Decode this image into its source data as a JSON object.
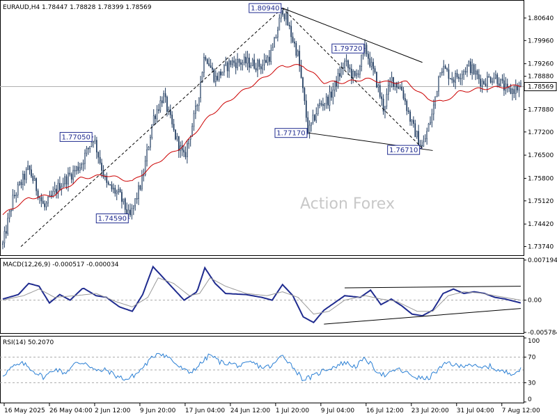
{
  "header": {
    "main": "EURAUD,H4  1.78447 1.78828 1.78399 1.78569",
    "macd": "MACD(12,26,9) -0.000517 -0.000034",
    "rsi": "RSI(14) 50.2070"
  },
  "watermark": "Action Forex",
  "colors": {
    "candle": "#1e3a5f",
    "ma": "#cc0000",
    "macd": "#1f2b8f",
    "signal": "#999999",
    "rsi": "#2a7fd4",
    "box": "#1f2b8f"
  },
  "chart_data": [
    {
      "type": "candlestick",
      "title": "EURAUD,H4",
      "ohlc_last": {
        "open": 1.78447,
        "high": 1.78828,
        "low": 1.78399,
        "close": 1.78569
      },
      "current_price_label": "1.78569",
      "ylim": [
        1.735,
        1.811
      ],
      "yticks": [
        "1.80640",
        "1.79960",
        "1.79260",
        "1.78880",
        "1.77880",
        "1.77200",
        "1.76500",
        "1.75800",
        "1.75120",
        "1.74420",
        "1.73740"
      ],
      "xticks": [
        "16 May 2025",
        "26 May 04:00",
        "2 Jun 12:00",
        "9 Jun 20:00",
        "17 Jun 04:00",
        "24 Jun 12:00",
        "1 Jul 20:00",
        "9 Jul 04:00",
        "16 Jul 12:00",
        "23 Jul 20:00",
        "31 Jul 04:00",
        "7 Aug 12:00"
      ],
      "annotations": [
        {
          "label": "1.80940",
          "x": 0.54,
          "y": 1.8094
        },
        {
          "label": "1.79720",
          "x": 0.7,
          "y": 1.7972
        },
        {
          "label": "1.77050",
          "x": 0.175,
          "y": 1.7705
        },
        {
          "label": "1.77170",
          "x": 0.59,
          "y": 1.7717
        },
        {
          "label": "1.76710",
          "x": 0.81,
          "y": 1.7671
        },
        {
          "label": "1.74590",
          "x": 0.245,
          "y": 1.7459
        }
      ],
      "pivots": [
        {
          "x": 0.0,
          "y": 1.738
        },
        {
          "x": 0.02,
          "y": 1.752
        },
        {
          "x": 0.05,
          "y": 1.761
        },
        {
          "x": 0.08,
          "y": 1.749
        },
        {
          "x": 0.11,
          "y": 1.756
        },
        {
          "x": 0.15,
          "y": 1.762
        },
        {
          "x": 0.175,
          "y": 1.7705
        },
        {
          "x": 0.2,
          "y": 1.756
        },
        {
          "x": 0.225,
          "y": 1.753
        },
        {
          "x": 0.245,
          "y": 1.7459
        },
        {
          "x": 0.27,
          "y": 1.758
        },
        {
          "x": 0.29,
          "y": 1.776
        },
        {
          "x": 0.31,
          "y": 1.783
        },
        {
          "x": 0.33,
          "y": 1.772
        },
        {
          "x": 0.35,
          "y": 1.764
        },
        {
          "x": 0.375,
          "y": 1.78
        },
        {
          "x": 0.39,
          "y": 1.796
        },
        {
          "x": 0.41,
          "y": 1.788
        },
        {
          "x": 0.44,
          "y": 1.793
        },
        {
          "x": 0.47,
          "y": 1.793
        },
        {
          "x": 0.5,
          "y": 1.792
        },
        {
          "x": 0.52,
          "y": 1.796
        },
        {
          "x": 0.54,
          "y": 1.8094
        },
        {
          "x": 0.57,
          "y": 1.795
        },
        {
          "x": 0.59,
          "y": 1.7717
        },
        {
          "x": 0.61,
          "y": 1.78
        },
        {
          "x": 0.63,
          "y": 1.782
        },
        {
          "x": 0.66,
          "y": 1.793
        },
        {
          "x": 0.68,
          "y": 1.788
        },
        {
          "x": 0.7,
          "y": 1.7972
        },
        {
          "x": 0.72,
          "y": 1.788
        },
        {
          "x": 0.735,
          "y": 1.779
        },
        {
          "x": 0.75,
          "y": 1.788
        },
        {
          "x": 0.77,
          "y": 1.785
        },
        {
          "x": 0.79,
          "y": 1.774
        },
        {
          "x": 0.81,
          "y": 1.7671
        },
        {
          "x": 0.83,
          "y": 1.778
        },
        {
          "x": 0.845,
          "y": 1.792
        },
        {
          "x": 0.87,
          "y": 1.788
        },
        {
          "x": 0.9,
          "y": 1.792
        },
        {
          "x": 0.925,
          "y": 1.787
        },
        {
          "x": 0.95,
          "y": 1.789
        },
        {
          "x": 0.975,
          "y": 1.784
        },
        {
          "x": 1.0,
          "y": 1.7857
        }
      ],
      "ma": [
        {
          "x": 0.0,
          "y": 1.747
        },
        {
          "x": 0.05,
          "y": 1.752
        },
        {
          "x": 0.1,
          "y": 1.753
        },
        {
          "x": 0.15,
          "y": 1.758
        },
        {
          "x": 0.2,
          "y": 1.759
        },
        {
          "x": 0.25,
          "y": 1.757
        },
        {
          "x": 0.3,
          "y": 1.763
        },
        {
          "x": 0.35,
          "y": 1.768
        },
        {
          "x": 0.4,
          "y": 1.777
        },
        {
          "x": 0.45,
          "y": 1.783
        },
        {
          "x": 0.5,
          "y": 1.788
        },
        {
          "x": 0.54,
          "y": 1.792
        },
        {
          "x": 0.58,
          "y": 1.792
        },
        {
          "x": 0.62,
          "y": 1.787
        },
        {
          "x": 0.66,
          "y": 1.787
        },
        {
          "x": 0.7,
          "y": 1.788
        },
        {
          "x": 0.74,
          "y": 1.787
        },
        {
          "x": 0.78,
          "y": 1.787
        },
        {
          "x": 0.82,
          "y": 1.782
        },
        {
          "x": 0.85,
          "y": 1.781
        },
        {
          "x": 0.88,
          "y": 1.784
        },
        {
          "x": 0.92,
          "y": 1.785
        },
        {
          "x": 0.96,
          "y": 1.7855
        },
        {
          "x": 1.0,
          "y": 1.786
        }
      ],
      "trendlines": [
        {
          "x1": 0.035,
          "y1": 1.7374,
          "x2": 0.54,
          "y2": 1.8094,
          "style": "dashed"
        },
        {
          "x1": 0.54,
          "y1": 1.8094,
          "x2": 0.81,
          "y2": 1.7671,
          "style": "dashed"
        },
        {
          "x1": 0.54,
          "y1": 1.8094,
          "x2": 0.81,
          "y2": 1.793,
          "style": "solid"
        },
        {
          "x1": 0.59,
          "y1": 1.7717,
          "x2": 0.83,
          "y2": 1.7664,
          "style": "solid"
        }
      ]
    },
    {
      "type": "line",
      "title": "MACD(12,26,9)",
      "ylim": [
        -0.00578,
        0.00719
      ],
      "yticks": [
        "0.007194",
        "0.00",
        "-0.005784"
      ],
      "series": [
        {
          "name": "macd",
          "points": [
            {
              "x": 0.0,
              "y": 0.0002
            },
            {
              "x": 0.03,
              "y": 0.001
            },
            {
              "x": 0.05,
              "y": 0.003
            },
            {
              "x": 0.07,
              "y": 0.0025
            },
            {
              "x": 0.09,
              "y": -0.0005
            },
            {
              "x": 0.11,
              "y": 0.001
            },
            {
              "x": 0.13,
              "y": 0.0
            },
            {
              "x": 0.155,
              "y": 0.0022
            },
            {
              "x": 0.18,
              "y": 0.0008
            },
            {
              "x": 0.2,
              "y": 0.0005
            },
            {
              "x": 0.225,
              "y": -0.0012
            },
            {
              "x": 0.25,
              "y": -0.002
            },
            {
              "x": 0.27,
              "y": 0.001
            },
            {
              "x": 0.29,
              "y": 0.006
            },
            {
              "x": 0.31,
              "y": 0.004
            },
            {
              "x": 0.33,
              "y": 0.002
            },
            {
              "x": 0.35,
              "y": 0.0
            },
            {
              "x": 0.375,
              "y": 0.0015
            },
            {
              "x": 0.39,
              "y": 0.0058
            },
            {
              "x": 0.41,
              "y": 0.003
            },
            {
              "x": 0.43,
              "y": 0.0012
            },
            {
              "x": 0.47,
              "y": 0.001
            },
            {
              "x": 0.5,
              "y": 0.0005
            },
            {
              "x": 0.52,
              "y": 0.0
            },
            {
              "x": 0.54,
              "y": 0.0028
            },
            {
              "x": 0.56,
              "y": 0.0008
            },
            {
              "x": 0.58,
              "y": -0.003
            },
            {
              "x": 0.6,
              "y": -0.004
            },
            {
              "x": 0.62,
              "y": -0.0018
            },
            {
              "x": 0.64,
              "y": -0.0005
            },
            {
              "x": 0.66,
              "y": 0.0008
            },
            {
              "x": 0.69,
              "y": 0.0005
            },
            {
              "x": 0.71,
              "y": 0.0018
            },
            {
              "x": 0.73,
              "y": -0.0008
            },
            {
              "x": 0.75,
              "y": 0.0002
            },
            {
              "x": 0.77,
              "y": -0.001
            },
            {
              "x": 0.79,
              "y": -0.0025
            },
            {
              "x": 0.81,
              "y": -0.0028
            },
            {
              "x": 0.83,
              "y": -0.0018
            },
            {
              "x": 0.85,
              "y": 0.0012
            },
            {
              "x": 0.87,
              "y": 0.002
            },
            {
              "x": 0.89,
              "y": 0.0012
            },
            {
              "x": 0.91,
              "y": 0.0015
            },
            {
              "x": 0.93,
              "y": 0.0012
            },
            {
              "x": 0.95,
              "y": 0.0005
            },
            {
              "x": 0.97,
              "y": 0.0002
            },
            {
              "x": 1.0,
              "y": -0.0005
            }
          ]
        },
        {
          "name": "signal",
          "points": [
            {
              "x": 0.0,
              "y": 0.0
            },
            {
              "x": 0.04,
              "y": 0.0008
            },
            {
              "x": 0.07,
              "y": 0.002
            },
            {
              "x": 0.1,
              "y": 0.0005
            },
            {
              "x": 0.14,
              "y": 0.0008
            },
            {
              "x": 0.18,
              "y": 0.0012
            },
            {
              "x": 0.22,
              "y": -0.0003
            },
            {
              "x": 0.25,
              "y": -0.0012
            },
            {
              "x": 0.28,
              "y": 0.0005
            },
            {
              "x": 0.3,
              "y": 0.004
            },
            {
              "x": 0.33,
              "y": 0.003
            },
            {
              "x": 0.36,
              "y": 0.0008
            },
            {
              "x": 0.38,
              "y": 0.0012
            },
            {
              "x": 0.4,
              "y": 0.004
            },
            {
              "x": 0.43,
              "y": 0.0025
            },
            {
              "x": 0.47,
              "y": 0.0012
            },
            {
              "x": 0.51,
              "y": 0.0008
            },
            {
              "x": 0.54,
              "y": 0.0015
            },
            {
              "x": 0.57,
              "y": 0.0005
            },
            {
              "x": 0.6,
              "y": -0.0025
            },
            {
              "x": 0.63,
              "y": -0.002
            },
            {
              "x": 0.66,
              "y": 0.0
            },
            {
              "x": 0.7,
              "y": 0.0008
            },
            {
              "x": 0.73,
              "y": 0.0002
            },
            {
              "x": 0.76,
              "y": -0.0002
            },
            {
              "x": 0.8,
              "y": -0.002
            },
            {
              "x": 0.83,
              "y": -0.002
            },
            {
              "x": 0.86,
              "y": 0.0008
            },
            {
              "x": 0.89,
              "y": 0.0015
            },
            {
              "x": 0.92,
              "y": 0.0013
            },
            {
              "x": 0.95,
              "y": 0.0008
            },
            {
              "x": 1.0,
              "y": 0.0
            }
          ]
        }
      ],
      "trendlines": [
        {
          "x1": 0.62,
          "y1": -0.0043,
          "x2": 1.0,
          "y2": -0.0015
        },
        {
          "x1": 0.66,
          "y1": 0.0022,
          "x2": 1.0,
          "y2": 0.0025
        }
      ]
    },
    {
      "type": "line",
      "title": "RSI(14)",
      "ylim": [
        0,
        100
      ],
      "yticks": [
        "100",
        "70",
        "30",
        "0"
      ],
      "levels": [
        70,
        50,
        30
      ],
      "series": [
        {
          "name": "rsi",
          "points": [
            {
              "x": 0.0,
              "y": 42
            },
            {
              "x": 0.02,
              "y": 55
            },
            {
              "x": 0.04,
              "y": 60
            },
            {
              "x": 0.06,
              "y": 48
            },
            {
              "x": 0.08,
              "y": 38
            },
            {
              "x": 0.1,
              "y": 52
            },
            {
              "x": 0.12,
              "y": 45
            },
            {
              "x": 0.14,
              "y": 60
            },
            {
              "x": 0.16,
              "y": 62
            },
            {
              "x": 0.18,
              "y": 48
            },
            {
              "x": 0.2,
              "y": 50
            },
            {
              "x": 0.22,
              "y": 40
            },
            {
              "x": 0.24,
              "y": 35
            },
            {
              "x": 0.26,
              "y": 45
            },
            {
              "x": 0.28,
              "y": 62
            },
            {
              "x": 0.3,
              "y": 78
            },
            {
              "x": 0.32,
              "y": 70
            },
            {
              "x": 0.34,
              "y": 55
            },
            {
              "x": 0.36,
              "y": 45
            },
            {
              "x": 0.38,
              "y": 58
            },
            {
              "x": 0.4,
              "y": 74
            },
            {
              "x": 0.42,
              "y": 62
            },
            {
              "x": 0.44,
              "y": 60
            },
            {
              "x": 0.46,
              "y": 56
            },
            {
              "x": 0.48,
              "y": 62
            },
            {
              "x": 0.5,
              "y": 54
            },
            {
              "x": 0.52,
              "y": 56
            },
            {
              "x": 0.54,
              "y": 74
            },
            {
              "x": 0.56,
              "y": 55
            },
            {
              "x": 0.58,
              "y": 35
            },
            {
              "x": 0.6,
              "y": 40
            },
            {
              "x": 0.62,
              "y": 50
            },
            {
              "x": 0.64,
              "y": 55
            },
            {
              "x": 0.66,
              "y": 62
            },
            {
              "x": 0.68,
              "y": 55
            },
            {
              "x": 0.7,
              "y": 68
            },
            {
              "x": 0.72,
              "y": 50
            },
            {
              "x": 0.74,
              "y": 40
            },
            {
              "x": 0.76,
              "y": 52
            },
            {
              "x": 0.78,
              "y": 45
            },
            {
              "x": 0.8,
              "y": 38
            },
            {
              "x": 0.82,
              "y": 36
            },
            {
              "x": 0.84,
              "y": 50
            },
            {
              "x": 0.86,
              "y": 62
            },
            {
              "x": 0.88,
              "y": 55
            },
            {
              "x": 0.9,
              "y": 60
            },
            {
              "x": 0.92,
              "y": 52
            },
            {
              "x": 0.94,
              "y": 56
            },
            {
              "x": 0.96,
              "y": 48
            },
            {
              "x": 0.98,
              "y": 45
            },
            {
              "x": 1.0,
              "y": 50
            }
          ]
        }
      ]
    }
  ]
}
